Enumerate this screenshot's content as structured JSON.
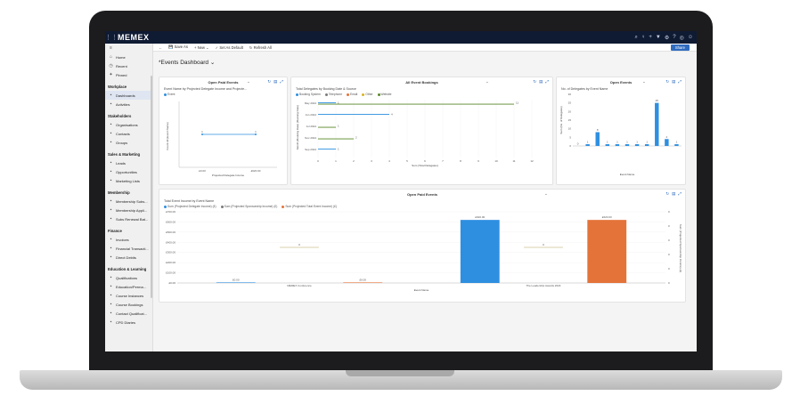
{
  "app": {
    "brand": "MEMEX",
    "share_label": "Share",
    "top_icons": [
      "⌕",
      "♀",
      "+",
      "▼",
      "⚙",
      "?",
      "◎",
      "☺"
    ]
  },
  "cmdbar": {
    "back": "←",
    "save_as": "Save As",
    "new": "New",
    "set_default": "Set As Default",
    "refresh_all": "Refresh All"
  },
  "sidebar": {
    "top_items": [
      {
        "label": "Home",
        "icon": "home-icon",
        "glyph": "⌂"
      },
      {
        "label": "Recent",
        "icon": "clock-icon",
        "glyph": "◷"
      },
      {
        "label": "Pinned",
        "icon": "pin-icon",
        "glyph": "✦"
      }
    ],
    "groups": [
      {
        "title": "Workplace",
        "items": [
          {
            "label": "Dashboards",
            "selected": true
          },
          {
            "label": "Activities"
          }
        ]
      },
      {
        "title": "Stakeholders",
        "items": [
          {
            "label": "Organisations"
          },
          {
            "label": "Contacts"
          },
          {
            "label": "Groups"
          }
        ]
      },
      {
        "title": "Sales & Marketing",
        "items": [
          {
            "label": "Leads"
          },
          {
            "label": "Opportunities"
          },
          {
            "label": "Marketing Lists"
          }
        ]
      },
      {
        "title": "Membership",
        "items": [
          {
            "label": "Membership Subs..."
          },
          {
            "label": "Membership Appli..."
          },
          {
            "label": "Subs Renewal Bat..."
          }
        ]
      },
      {
        "title": "Finance",
        "items": [
          {
            "label": "Invoices"
          },
          {
            "label": "Financial Transacti..."
          },
          {
            "label": "Direct Debits"
          }
        ]
      },
      {
        "title": "Education & Learning",
        "items": [
          {
            "label": "Qualifications"
          },
          {
            "label": "Education/Perma..."
          },
          {
            "label": "Course Instances"
          },
          {
            "label": "Course Bookings"
          },
          {
            "label": "Contact Qualificat..."
          },
          {
            "label": "CPD Diaries"
          }
        ]
      }
    ]
  },
  "dashboard": {
    "title": "*Events Dashboard"
  },
  "panel1": {
    "title": "Open Paid Events",
    "subtitle": "Event Name by Projected Delegate Income and Projecte...",
    "legend": [
      "Event"
    ],
    "xlabel": "Projected Delegate Income",
    "ylabel": "Count All (Event Name)"
  },
  "panel2": {
    "title": "All Event Bookings",
    "subtitle": "Total Delegates by Booking Date & Source",
    "legend": [
      "Booking System",
      "Telephone",
      "Email",
      "Other",
      "Website"
    ],
    "xlabel": "Sum (Total Delegates)",
    "ylabel": "Month (Booking Date) (Booking Date)"
  },
  "panel3": {
    "title": "Open Events",
    "subtitle": "No. of Delegates by Event Name",
    "xlabel": "Event Name",
    "ylabel": "Sum (No. of Delegates)"
  },
  "panel4": {
    "title": "Open Paid Events",
    "subtitle": "Total Event Income by Event Name",
    "legend": [
      "Sum (Projected Delegate Income) (£)",
      "Sum (Projected Sponsorship Income) (£)",
      "Sum (Projected Total Event Income) (£)"
    ],
    "xlabel": "Event Name",
    "ylabel_right": "Sum (Projected Sponsorship Income) (£)"
  },
  "colors": {
    "topbar": "#0f1a33",
    "accent": "#2f6bbf",
    "bar_blue": "#2e8fe0",
    "bar_orange": "#e4733a",
    "line_green": "#5a8a2a",
    "line_olive": "#b2a25a"
  },
  "chart_data": [
    {
      "type": "line",
      "title": "Open Paid Events",
      "subtitle": "Event Name by Projected Delegate Income and Projecte...",
      "series": [
        {
          "name": "Event",
          "values": [
            1,
            1
          ]
        }
      ],
      "categories": [
        "£0.00",
        "£620.00"
      ],
      "xlabel": "Projected Delegate Income",
      "ylabel": "Count All (Event Name)"
    },
    {
      "type": "bar",
      "title": "All Event Bookings",
      "subtitle": "Total Delegates by Booking Date & Source",
      "orientation": "horizontal",
      "categories": [
        "May 2024",
        "Jun 2024",
        "Jul 2024",
        "Nov 2024",
        "Sep 2024"
      ],
      "series": [
        {
          "name": "Booking System",
          "values": [
            1,
            4,
            0,
            0,
            1
          ]
        },
        {
          "name": "Telephone",
          "values": [
            0,
            0,
            0,
            0,
            0
          ]
        },
        {
          "name": "Email",
          "values": [
            0,
            0,
            0,
            0,
            0
          ]
        },
        {
          "name": "Other",
          "values": [
            0,
            0,
            0,
            0,
            0
          ]
        },
        {
          "name": "Website",
          "values": [
            11,
            0,
            1,
            2,
            0
          ]
        }
      ],
      "xticks": [
        0,
        1,
        2,
        3,
        4,
        5,
        6,
        7,
        8,
        9,
        10,
        11,
        12
      ],
      "xlabel": "Sum (Total Delegates)",
      "xlim": [
        0,
        12
      ]
    },
    {
      "type": "bar",
      "title": "Open Events",
      "subtitle": "No. of Delegates by Event Name",
      "values": [
        0,
        1,
        8,
        1,
        1,
        1,
        1,
        1,
        25,
        4,
        1
      ],
      "data_labels": [
        "0",
        "1",
        "8",
        "1",
        "1",
        "1",
        "1",
        "1",
        "25",
        "4",
        "1"
      ],
      "yticks": [
        0,
        5,
        10,
        15,
        20,
        25,
        30
      ],
      "ylim": [
        0,
        30
      ],
      "xlabel": "Event Name",
      "ylabel": "Sum (No. of Delegates)"
    },
    {
      "type": "bar",
      "title": "Open Paid Events",
      "subtitle": "Total Event Income by Event Name",
      "categories": [
        "MEMEX Conference",
        "The Leadership Awards 2024"
      ],
      "series": [
        {
          "name": "Sum (Projected Delegate Income) (£)",
          "values": [
            0,
            620
          ]
        },
        {
          "name": "Sum (Projected Sponsorship Income) (£)",
          "values": [
            0,
            0
          ]
        },
        {
          "name": "Sum (Projected Total Event Income) (£)",
          "values": [
            0,
            620
          ]
        }
      ],
      "value_labels": [
        "£0.00",
        "£0.00",
        "£620.00",
        "£620.00"
      ],
      "secondary_labels": [
        "0",
        "0"
      ],
      "yticks": [
        "£0.00",
        "£100.00",
        "£200.00",
        "£300.00",
        "£400.00",
        "£500.00",
        "£600.00",
        "£700.00"
      ],
      "y2ticks": [
        "0",
        "0",
        "0",
        "0",
        "0",
        "0"
      ],
      "ylim": [
        0,
        700
      ],
      "xlabel": "Event Name"
    }
  ]
}
